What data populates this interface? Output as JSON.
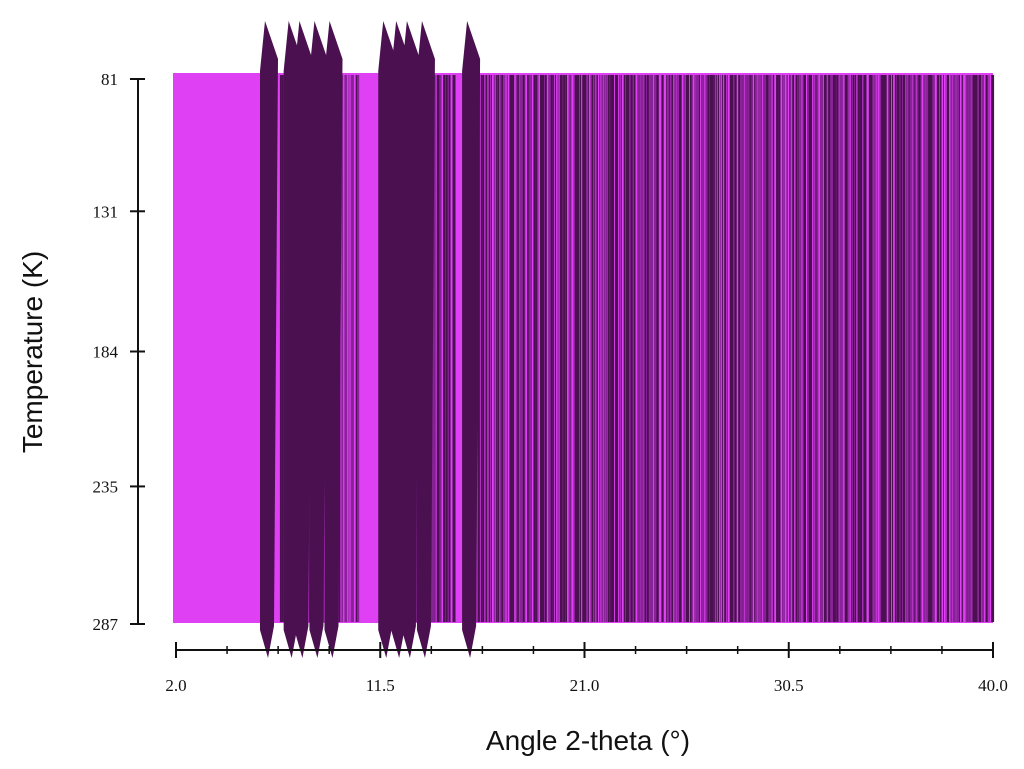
{
  "chart_data": {
    "type": "heatmap",
    "title": "",
    "xlabel": "Angle 2-theta (°)",
    "ylabel": "Temperature (K)",
    "x_ticks": [
      "2.0",
      "11.5",
      "21.0",
      "30.5",
      "40.0"
    ],
    "y_ticks": [
      "81",
      "131",
      "184",
      "235",
      "287"
    ],
    "xlim": [
      2.0,
      40.0
    ],
    "ylim": [
      81,
      287
    ],
    "y_inverted": true,
    "grid": false,
    "legend": "none",
    "colors": {
      "low": "#e040f4",
      "high": "#4a1050",
      "line": "#111111"
    },
    "peak_positions": [
      6.0,
      7.1,
      7.6,
      8.3,
      9.0,
      11.5,
      12.1,
      12.6,
      13.3,
      15.4
    ],
    "broad_peak_regions": [
      [
        6.8,
        10.5
      ],
      [
        11.8,
        15.0
      ],
      [
        15.7,
        40.0
      ]
    ]
  }
}
